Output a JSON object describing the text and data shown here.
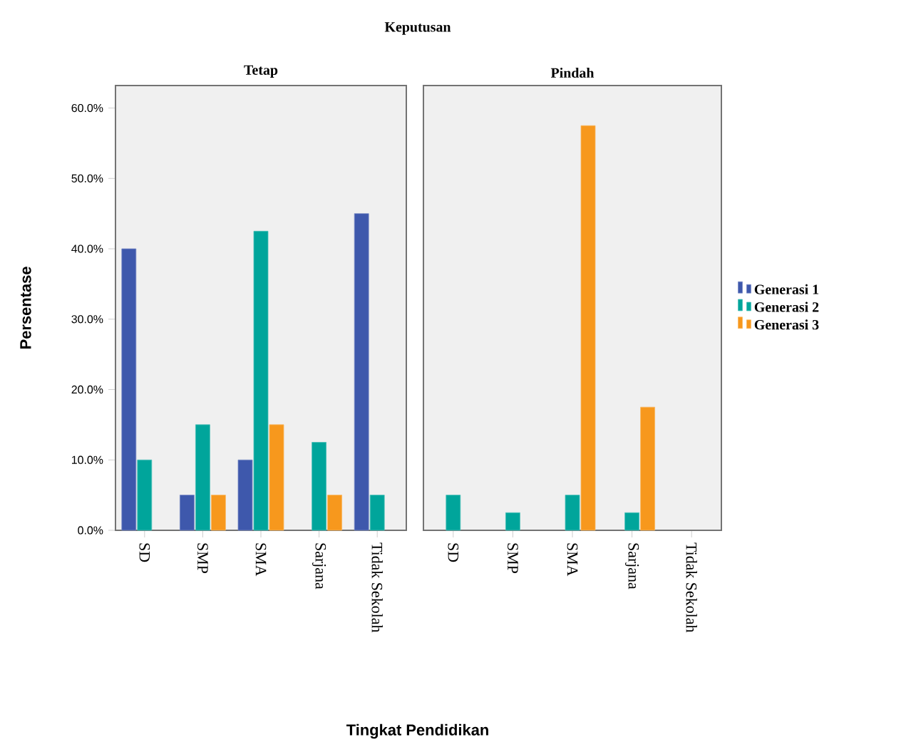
{
  "chart_data": [
    {
      "type": "bar",
      "title": "Tetap",
      "xlabel": "Tingkat Pendidikan",
      "ylabel": "Persentase",
      "annotations": [
        "Keputusan"
      ],
      "categories": [
        "SD",
        "SMP",
        "SMA",
        "Sarjana",
        "Tidak Sekolah"
      ],
      "ylim": [
        0,
        63.2
      ],
      "yticks": [
        {
          "value": 0,
          "label": "0.0%"
        },
        {
          "value": 10,
          "label": "10.0%"
        },
        {
          "value": 20,
          "label": "20.0%"
        },
        {
          "value": 30,
          "label": "30.0%"
        },
        {
          "value": 40,
          "label": "40.0%"
        },
        {
          "value": 50,
          "label": "50.0%"
        },
        {
          "value": 60,
          "label": "60.0%"
        }
      ],
      "series": [
        {
          "color": "#3e58ac",
          "values": [
            40,
            5,
            10,
            null,
            45
          ]
        },
        {
          "color": "#00a59b",
          "values": [
            10,
            15,
            42.5,
            12.5,
            5
          ]
        },
        {
          "color": "#f7981d",
          "values": [
            null,
            5,
            15,
            5,
            null
          ]
        }
      ]
    },
    {
      "type": "bar",
      "title": "Pindah",
      "categories": [
        "SD",
        "SMP",
        "SMA",
        "Sarjana",
        "Tidak Sekolah"
      ],
      "ylim": [
        0,
        63.2
      ],
      "tick_labels": "x",
      "legend": "right",
      "series": [
        {
          "name": "Generasi 1",
          "color": "#3e58ac",
          "values": [
            null,
            null,
            null,
            null,
            null
          ]
        },
        {
          "name": "Generasi 2",
          "color": "#00a59b",
          "values": [
            5,
            2.5,
            5,
            2.5,
            null
          ]
        },
        {
          "name": "Generasi 3",
          "color": "#f7981d",
          "values": [
            null,
            null,
            57.5,
            17.5,
            null
          ]
        }
      ]
    }
  ]
}
